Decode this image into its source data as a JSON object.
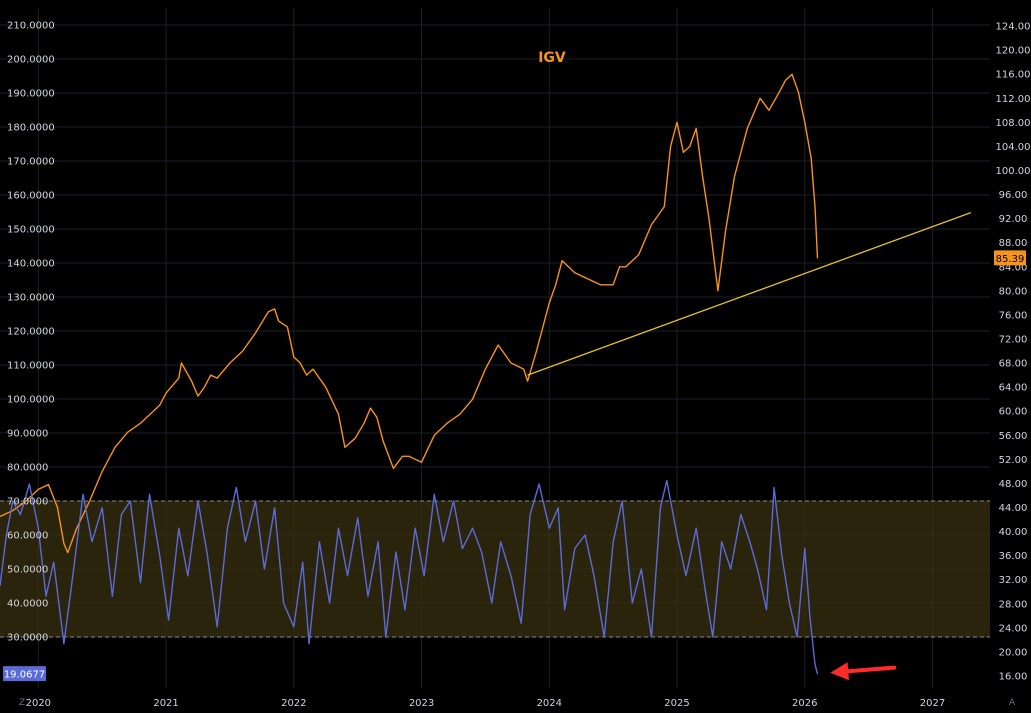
{
  "colors": {
    "background": "#000000",
    "grid": "#1c1f26",
    "price_line": "#f7931a",
    "indicator_line": "#5b6bd6",
    "band_fill": "#3a3010",
    "band_border": "#8a8a8a",
    "trendline": "#e6c229",
    "axis_text": "#d1d4dc",
    "price_badge": "#f7931a",
    "indicator_badge": "#5b6bd6",
    "arrow": "#ff2a2a"
  },
  "corner_left_label": "Z",
  "corner_right_label": "A",
  "chart_data": {
    "type": "line",
    "title": "IGV",
    "x_axis": {
      "tick_labels": [
        "2020",
        "2021",
        "2022",
        "2023",
        "2024",
        "2025",
        "2026",
        "2027"
      ],
      "range": [
        2019.7,
        2027.45
      ]
    },
    "left_axis": {
      "range": [
        15,
        215
      ],
      "tick_labels": [
        "30.0000",
        "40.0000",
        "50.0000",
        "60.0000",
        "70.0000",
        "80.0000",
        "90.0000",
        "100.0000",
        "110.0000",
        "120.0000",
        "130.0000",
        "140.0000",
        "150.0000",
        "160.0000",
        "170.0000",
        "180.0000",
        "190.0000",
        "200.0000",
        "210.0000"
      ],
      "current_value_label": "19.0677"
    },
    "right_axis": {
      "range": [
        14,
        127
      ],
      "tick_labels": [
        "16.00",
        "20.00",
        "24.00",
        "28.00",
        "32.00",
        "36.00",
        "40.00",
        "44.00",
        "48.00",
        "52.00",
        "56.00",
        "60.00",
        "64.00",
        "68.00",
        "72.00",
        "76.00",
        "80.00",
        "84.00",
        "88.00",
        "92.00",
        "96.00",
        "100.00",
        "104.00",
        "108.00",
        "112.00",
        "116.00",
        "120.00",
        "124.00"
      ],
      "current_value_label": "85.39"
    },
    "band": {
      "axis": "left",
      "lower": 30,
      "upper": 70
    },
    "series": [
      {
        "axis": "right",
        "points": [
          [
            2019.7,
            42.5
          ],
          [
            2019.8,
            43.5
          ],
          [
            2019.9,
            45.0
          ],
          [
            2020.0,
            47.0
          ],
          [
            2020.08,
            47.8
          ],
          [
            2020.15,
            44.0
          ],
          [
            2020.2,
            38.0
          ],
          [
            2020.23,
            36.5
          ],
          [
            2020.3,
            40.5
          ],
          [
            2020.4,
            45.0
          ],
          [
            2020.5,
            50.0
          ],
          [
            2020.6,
            54.0
          ],
          [
            2020.7,
            56.5
          ],
          [
            2020.8,
            58.0
          ],
          [
            2020.95,
            61.0
          ],
          [
            2021.0,
            63.0
          ],
          [
            2021.1,
            65.5
          ],
          [
            2021.12,
            68.0
          ],
          [
            2021.2,
            65.0
          ],
          [
            2021.25,
            62.5
          ],
          [
            2021.3,
            64.0
          ],
          [
            2021.35,
            66.0
          ],
          [
            2021.4,
            65.5
          ],
          [
            2021.5,
            68.0
          ],
          [
            2021.6,
            70.0
          ],
          [
            2021.7,
            73.0
          ],
          [
            2021.8,
            76.5
          ],
          [
            2021.85,
            77.0
          ],
          [
            2021.88,
            75.0
          ],
          [
            2021.95,
            74.0
          ],
          [
            2022.0,
            69.0
          ],
          [
            2022.05,
            68.0
          ],
          [
            2022.1,
            66.0
          ],
          [
            2022.15,
            67.0
          ],
          [
            2022.25,
            64.0
          ],
          [
            2022.35,
            59.5
          ],
          [
            2022.4,
            54.0
          ],
          [
            2022.48,
            55.5
          ],
          [
            2022.55,
            58.0
          ],
          [
            2022.6,
            60.5
          ],
          [
            2022.65,
            59.0
          ],
          [
            2022.7,
            55.0
          ],
          [
            2022.78,
            50.5
          ],
          [
            2022.85,
            52.5
          ],
          [
            2022.9,
            52.5
          ],
          [
            2023.0,
            51.5
          ],
          [
            2023.1,
            56.0
          ],
          [
            2023.2,
            58.0
          ],
          [
            2023.3,
            59.5
          ],
          [
            2023.4,
            62.0
          ],
          [
            2023.5,
            67.0
          ],
          [
            2023.6,
            71.0
          ],
          [
            2023.7,
            68.0
          ],
          [
            2023.8,
            67.0
          ],
          [
            2023.83,
            65.0
          ],
          [
            2023.9,
            70.0
          ],
          [
            2024.0,
            78.0
          ],
          [
            2024.05,
            81.0
          ],
          [
            2024.1,
            85.0
          ],
          [
            2024.15,
            84.0
          ],
          [
            2024.2,
            83.0
          ],
          [
            2024.3,
            82.0
          ],
          [
            2024.4,
            81.0
          ],
          [
            2024.5,
            81.0
          ],
          [
            2024.55,
            84.0
          ],
          [
            2024.6,
            84.0
          ],
          [
            2024.7,
            86.0
          ],
          [
            2024.8,
            91.0
          ],
          [
            2024.9,
            94.0
          ],
          [
            2024.95,
            104.0
          ],
          [
            2025.0,
            108.0
          ],
          [
            2025.05,
            103.0
          ],
          [
            2025.1,
            104.0
          ],
          [
            2025.15,
            107.0
          ],
          [
            2025.2,
            99.0
          ],
          [
            2025.25,
            92.0
          ],
          [
            2025.32,
            80.0
          ],
          [
            2025.38,
            90.0
          ],
          [
            2025.45,
            99.0
          ],
          [
            2025.55,
            107.0
          ],
          [
            2025.65,
            112.0
          ],
          [
            2025.72,
            110.0
          ],
          [
            2025.8,
            113.0
          ],
          [
            2025.85,
            115.0
          ],
          [
            2025.9,
            116.0
          ],
          [
            2025.95,
            113.0
          ],
          [
            2026.0,
            108.0
          ],
          [
            2026.05,
            102.0
          ],
          [
            2026.08,
            94.0
          ],
          [
            2026.1,
            85.4
          ]
        ]
      },
      {
        "axis": "left",
        "points": [
          [
            2019.7,
            45.0
          ],
          [
            2019.75,
            60.0
          ],
          [
            2019.8,
            70.0
          ],
          [
            2019.86,
            66.0
          ],
          [
            2019.93,
            75.0
          ],
          [
            2020.0,
            62.0
          ],
          [
            2020.06,
            42.0
          ],
          [
            2020.12,
            52.0
          ],
          [
            2020.2,
            28.0
          ],
          [
            2020.27,
            48.0
          ],
          [
            2020.35,
            72.0
          ],
          [
            2020.42,
            58.0
          ],
          [
            2020.5,
            68.0
          ],
          [
            2020.58,
            42.0
          ],
          [
            2020.65,
            66.0
          ],
          [
            2020.72,
            70.0
          ],
          [
            2020.8,
            46.0
          ],
          [
            2020.87,
            72.0
          ],
          [
            2020.95,
            54.0
          ],
          [
            2021.02,
            35.0
          ],
          [
            2021.1,
            62.0
          ],
          [
            2021.17,
            48.0
          ],
          [
            2021.25,
            70.0
          ],
          [
            2021.32,
            55.0
          ],
          [
            2021.4,
            33.0
          ],
          [
            2021.48,
            62.0
          ],
          [
            2021.55,
            74.0
          ],
          [
            2021.62,
            58.0
          ],
          [
            2021.7,
            70.0
          ],
          [
            2021.77,
            50.0
          ],
          [
            2021.85,
            68.0
          ],
          [
            2021.92,
            40.0
          ],
          [
            2022.0,
            33.0
          ],
          [
            2022.07,
            52.0
          ],
          [
            2022.12,
            28.0
          ],
          [
            2022.2,
            58.0
          ],
          [
            2022.28,
            40.0
          ],
          [
            2022.35,
            62.0
          ],
          [
            2022.42,
            48.0
          ],
          [
            2022.5,
            65.0
          ],
          [
            2022.58,
            42.0
          ],
          [
            2022.66,
            58.0
          ],
          [
            2022.72,
            30.0
          ],
          [
            2022.8,
            55.0
          ],
          [
            2022.87,
            38.0
          ],
          [
            2022.95,
            62.0
          ],
          [
            2023.02,
            48.0
          ],
          [
            2023.1,
            72.0
          ],
          [
            2023.17,
            58.0
          ],
          [
            2023.25,
            70.0
          ],
          [
            2023.32,
            56.0
          ],
          [
            2023.4,
            62.0
          ],
          [
            2023.47,
            55.0
          ],
          [
            2023.55,
            40.0
          ],
          [
            2023.62,
            58.0
          ],
          [
            2023.7,
            48.0
          ],
          [
            2023.78,
            34.0
          ],
          [
            2023.85,
            66.0
          ],
          [
            2023.92,
            75.0
          ],
          [
            2024.0,
            62.0
          ],
          [
            2024.07,
            68.0
          ],
          [
            2024.12,
            38.0
          ],
          [
            2024.2,
            56.0
          ],
          [
            2024.28,
            60.0
          ],
          [
            2024.35,
            48.0
          ],
          [
            2024.43,
            30.0
          ],
          [
            2024.5,
            58.0
          ],
          [
            2024.57,
            70.0
          ],
          [
            2024.65,
            40.0
          ],
          [
            2024.72,
            50.0
          ],
          [
            2024.8,
            30.0
          ],
          [
            2024.87,
            68.0
          ],
          [
            2024.92,
            76.0
          ],
          [
            2025.0,
            60.0
          ],
          [
            2025.07,
            48.0
          ],
          [
            2025.15,
            62.0
          ],
          [
            2025.22,
            44.0
          ],
          [
            2025.28,
            30.0
          ],
          [
            2025.35,
            58.0
          ],
          [
            2025.42,
            50.0
          ],
          [
            2025.5,
            66.0
          ],
          [
            2025.57,
            58.0
          ],
          [
            2025.63,
            50.0
          ],
          [
            2025.7,
            38.0
          ],
          [
            2025.76,
            74.0
          ],
          [
            2025.82,
            54.0
          ],
          [
            2025.88,
            40.0
          ],
          [
            2025.94,
            30.0
          ],
          [
            2026.0,
            56.0
          ],
          [
            2026.04,
            36.0
          ],
          [
            2026.08,
            22.0
          ],
          [
            2026.1,
            19.07
          ]
        ]
      }
    ],
    "trendline": {
      "axis": "right",
      "start": [
        2023.83,
        66.0
      ],
      "end": [
        2027.3,
        93.0
      ]
    },
    "annotation": {
      "type": "arrow",
      "axis": "left",
      "tip": [
        2026.2,
        19.5
      ],
      "tail": [
        2026.7,
        21.0
      ]
    }
  }
}
